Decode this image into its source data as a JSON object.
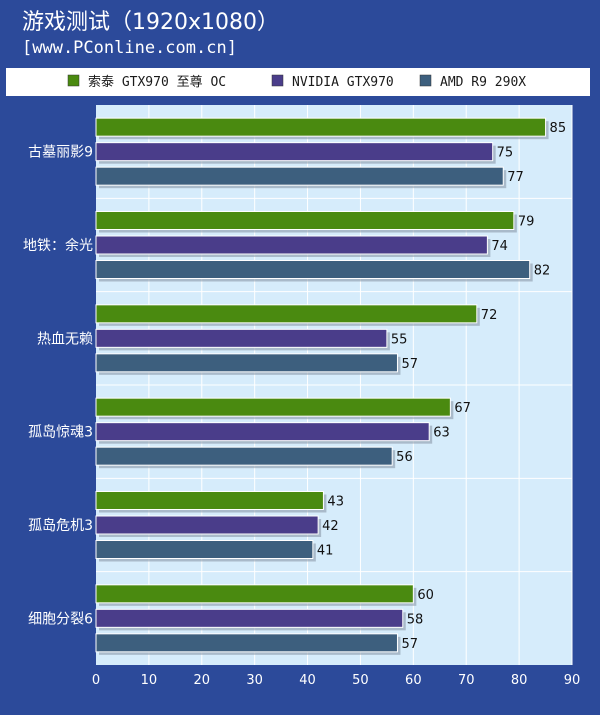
{
  "header": {
    "title": "游戏测试（1920x1080）",
    "subtitle": "[www.PConline.com.cn]"
  },
  "chart_data": {
    "type": "bar",
    "orientation": "horizontal",
    "title": "游戏测试（1920x1080）",
    "categories": [
      "古墓丽影9",
      "地铁：余光",
      "热血无赖",
      "孤岛惊魂3",
      "孤岛危机3",
      "细胞分裂6"
    ],
    "series": [
      {
        "name": "索泰 GTX970 至尊 OC",
        "color": "#4a8a10",
        "values": [
          85,
          79,
          72,
          67,
          43,
          60
        ]
      },
      {
        "name": "NVIDIA GTX970",
        "color": "#4a3d8a",
        "values": [
          75,
          74,
          55,
          63,
          42,
          58
        ]
      },
      {
        "name": "AMD R9 290X",
        "color": "#3d5f7e",
        "values": [
          77,
          82,
          57,
          56,
          41,
          57
        ]
      }
    ],
    "xlim": [
      0,
      90
    ],
    "ticks": [
      0,
      10,
      20,
      30,
      40,
      50,
      60,
      70,
      80,
      90
    ],
    "legend_position": "top",
    "grid": true,
    "colors": {
      "background": "#2c4a9a",
      "plot_background": "#d6ecfb",
      "gridline": "#ffffff",
      "legend_background": "#ffffff"
    }
  }
}
